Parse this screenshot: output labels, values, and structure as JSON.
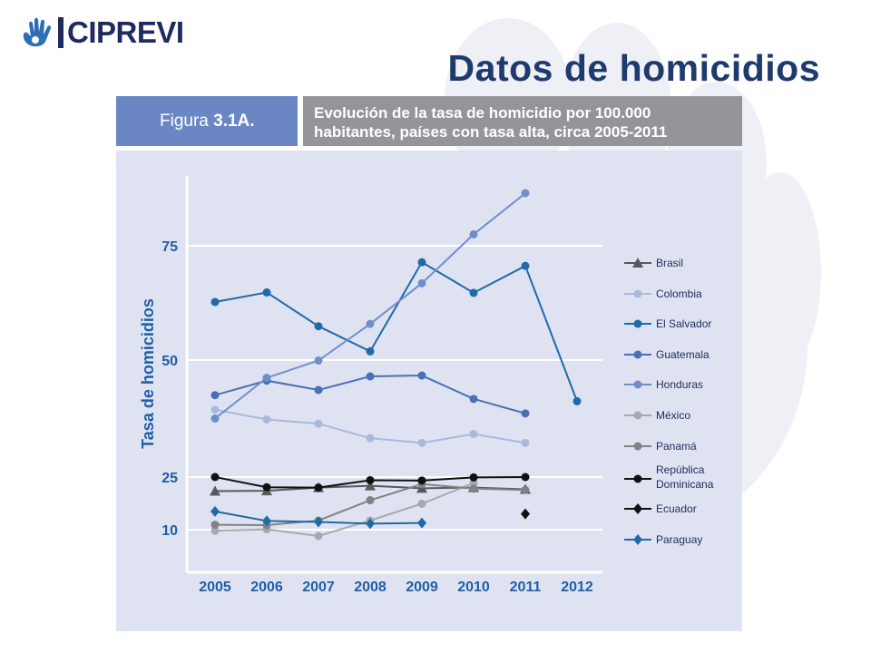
{
  "logo": {
    "text": "CIPREVI"
  },
  "slide_title": "Datos de homicidios",
  "figure": {
    "label_prefix": "Figura ",
    "label_number": "3.1A.",
    "caption_line1": "Evolución de la tasa de  homicidio por 100.000",
    "caption_line2": "habitantes, países con tasa alta, circa 2005-2011"
  },
  "colors": {
    "label_box": "#6a87c4",
    "caption_box": "#939598",
    "panel": "#dfe3f1",
    "title": "#1f3a6e",
    "axis_text": "#1f5ea8"
  },
  "chart_data": {
    "type": "line",
    "ylabel": "Tasa de homicidios",
    "xlabel": "",
    "categories": [
      "2005",
      "2006",
      "2007",
      "2008",
      "2009",
      "2010",
      "2011",
      "2012"
    ],
    "yticks": [
      "10",
      "25",
      "50",
      "75"
    ],
    "grid": true,
    "legend_position": "right",
    "series": [
      {
        "name": "Brasil",
        "marker": "triangle",
        "color": "#58595b",
        "values": [
          21,
          21.1,
          22,
          22.5,
          21.8,
          22,
          21.5,
          null
        ]
      },
      {
        "name": "Colombia",
        "marker": "circle",
        "color": "#a9b9de",
        "values": [
          39.4,
          37.3,
          36.4,
          33.3,
          32.3,
          34.2,
          32.3,
          null
        ]
      },
      {
        "name": "El Salvador",
        "marker": "circle",
        "color": "#1f6aa8",
        "values": [
          62.7,
          64.8,
          57.4,
          51.9,
          71.4,
          64.7,
          70.6,
          41.2
        ]
      },
      {
        "name": "Guatemala",
        "marker": "circle",
        "color": "#4a6fb5",
        "values": [
          42.5,
          45.6,
          43.6,
          46.5,
          46.7,
          41.7,
          38.6,
          null
        ]
      },
      {
        "name": "Honduras",
        "marker": "circle",
        "color": "#6f8fcc",
        "values": [
          37.5,
          46.2,
          49.9,
          57.9,
          66.8,
          77.5,
          86.5,
          null
        ]
      },
      {
        "name": "México",
        "marker": "circle",
        "color": "#a7a9ac",
        "values": [
          9.7,
          10.1,
          8.2,
          12.6,
          17.4,
          23.3,
          null,
          null
        ]
      },
      {
        "name": "Panamá",
        "marker": "circle",
        "color": "#808285",
        "values": [
          11.4,
          11.3,
          12.6,
          18.4,
          23,
          21.7,
          21.3,
          null
        ]
      },
      {
        "name": "República Dominicana",
        "marker": "circle",
        "color": "#111111",
        "values": [
          25,
          22.1,
          22,
          24.1,
          24,
          24.9,
          25,
          null
        ]
      },
      {
        "name": "Ecuador",
        "marker": "diamond",
        "color": "#111111",
        "values": [
          null,
          null,
          null,
          null,
          null,
          null,
          14.5,
          null
        ]
      },
      {
        "name": "Paraguay",
        "marker": "diamond",
        "color": "#1f6aa8",
        "values": [
          15.2,
          12.5,
          12.2,
          11.7,
          11.9,
          null,
          null,
          null
        ]
      }
    ]
  }
}
